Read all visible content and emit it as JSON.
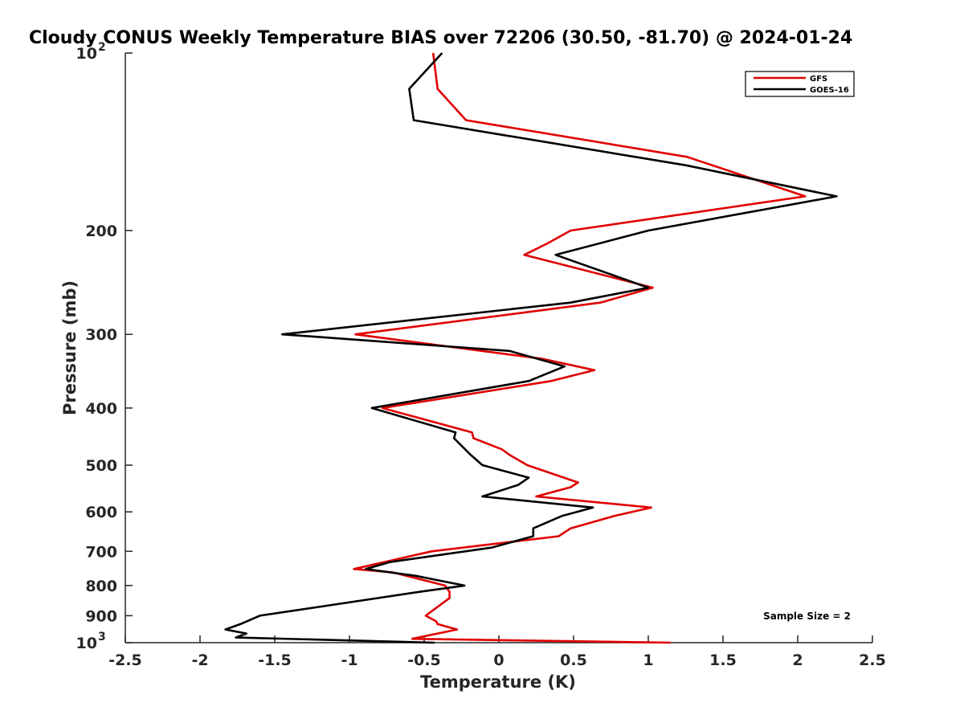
{
  "chart_data": {
    "type": "line",
    "title": "Cloudy CONUS Weekly Temperature BIAS over 72206 (30.50, -81.70) @ 2024-01-24",
    "xlabel": "Temperature (K)",
    "ylabel": "Pressure (mb)",
    "xlim": [
      -2.5,
      2.5
    ],
    "ylim": [
      100,
      1000
    ],
    "y_scale": "log",
    "y_reversed": true,
    "x_ticks": [
      -2.5,
      -2,
      -1.5,
      -1,
      -0.5,
      0,
      0.5,
      1,
      1.5,
      2,
      2.5
    ],
    "x_tick_labels": [
      "-2.5",
      "-2",
      "-1.5",
      "-1",
      "-0.5",
      "0",
      "0.5",
      "1",
      "1.5",
      "2",
      "2.5"
    ],
    "y_ticks": [
      200,
      300,
      400,
      500,
      600,
      700,
      800,
      900
    ],
    "y_tick_labels": [
      "200",
      "300",
      "400",
      "500",
      "600",
      "700",
      "800",
      "900"
    ],
    "y_end_labels": {
      "top_base": "10",
      "top_exp": "2",
      "bottom_base": "10",
      "bottom_exp": "3"
    },
    "legend_position": "top-right",
    "annotation": "Sample Size = 2",
    "series": [
      {
        "name": "GFS",
        "color": "#e00000",
        "points": [
          [
            -0.44,
            100
          ],
          [
            -0.41,
            115
          ],
          [
            -0.22,
            130
          ],
          [
            1.26,
            150
          ],
          [
            2.05,
            175
          ],
          [
            0.48,
            200
          ],
          [
            0.33,
            210
          ],
          [
            0.17,
            220
          ],
          [
            1.03,
            250
          ],
          [
            0.68,
            265
          ],
          [
            -0.96,
            300
          ],
          [
            0.29,
            330
          ],
          [
            0.64,
            345
          ],
          [
            0.35,
            360
          ],
          [
            -0.78,
            400
          ],
          [
            -0.18,
            440
          ],
          [
            -0.17,
            450
          ],
          [
            0.02,
            470
          ],
          [
            0.07,
            480
          ],
          [
            0.19,
            500
          ],
          [
            0.53,
            535
          ],
          [
            0.48,
            545
          ],
          [
            0.25,
            565
          ],
          [
            1.02,
            590
          ],
          [
            0.77,
            610
          ],
          [
            0.48,
            640
          ],
          [
            0.4,
            660
          ],
          [
            -0.45,
            700
          ],
          [
            -0.97,
            750
          ],
          [
            -0.71,
            760
          ],
          [
            -0.36,
            800
          ],
          [
            -0.33,
            820
          ],
          [
            -0.33,
            840
          ],
          [
            -0.49,
            900
          ],
          [
            -0.42,
            920
          ],
          [
            -0.41,
            930
          ],
          [
            -0.28,
            950
          ],
          [
            -0.58,
            985
          ],
          [
            1.15,
            1000
          ]
        ]
      },
      {
        "name": "GOES-16",
        "color": "#000000",
        "points": [
          [
            -0.38,
            100
          ],
          [
            -0.6,
            115
          ],
          [
            -0.57,
            130
          ],
          [
            1.25,
            155
          ],
          [
            2.26,
            175
          ],
          [
            1.0,
            200
          ],
          [
            0.38,
            220
          ],
          [
            1.0,
            250
          ],
          [
            0.48,
            265
          ],
          [
            -1.45,
            300
          ],
          [
            0.07,
            320
          ],
          [
            0.44,
            340
          ],
          [
            0.2,
            360
          ],
          [
            -0.85,
            400
          ],
          [
            -0.29,
            440
          ],
          [
            -0.3,
            450
          ],
          [
            -0.19,
            480
          ],
          [
            -0.11,
            500
          ],
          [
            0.2,
            525
          ],
          [
            0.13,
            540
          ],
          [
            -0.11,
            565
          ],
          [
            0.63,
            590
          ],
          [
            0.42,
            610
          ],
          [
            0.23,
            640
          ],
          [
            0.23,
            660
          ],
          [
            -0.05,
            690
          ],
          [
            -0.73,
            730
          ],
          [
            -0.89,
            750
          ],
          [
            -0.56,
            770
          ],
          [
            -0.23,
            800
          ],
          [
            -0.53,
            820
          ],
          [
            -1.21,
            870
          ],
          [
            -1.6,
            900
          ],
          [
            -1.73,
            930
          ],
          [
            -1.83,
            950
          ],
          [
            -1.69,
            965
          ],
          [
            -1.76,
            980
          ],
          [
            -0.43,
            1000
          ]
        ]
      }
    ]
  }
}
